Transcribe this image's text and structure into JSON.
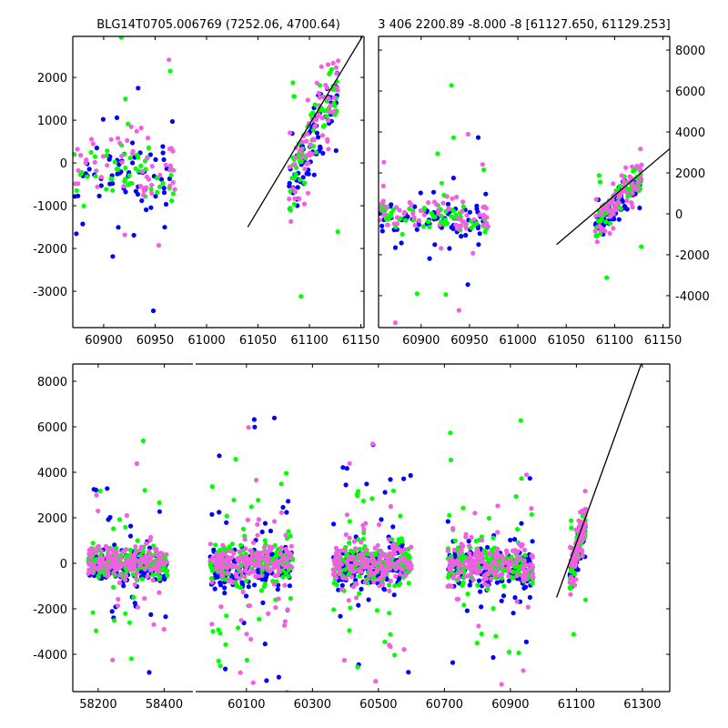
{
  "chart_data": [
    {
      "type": "scatter",
      "title": "BLG14T0705.006769 (7252.06, 4700.64)",
      "xlim": [
        60870,
        61153
      ],
      "ylim": [
        -3850,
        2960
      ],
      "xticks": [
        60900,
        60950,
        61000,
        61050,
        61100,
        61150
      ],
      "yticks": [
        -3000,
        -2000,
        -1000,
        0,
        1000,
        2000
      ],
      "yaxis_side": "left",
      "grid": false
    },
    {
      "type": "scatter",
      "title": "3 406 2200.89 -8.000 -8 [61127.650, 61129.253]",
      "xlim": [
        60856,
        61157
      ],
      "ylim": [
        -5560,
        8670
      ],
      "xticks": [
        60900,
        60950,
        61000,
        61050,
        61100,
        61150
      ],
      "yticks": [
        -4000,
        -2000,
        0,
        2000,
        4000,
        6000,
        8000
      ],
      "yaxis_side": "right",
      "grid": false
    },
    {
      "type": "scatter",
      "title": "",
      "broken_x_axis": true,
      "xlim_segments": [
        [
          58123,
          58487
        ],
        [
          59946,
          61383
        ]
      ],
      "ylim": [
        -5640,
        8760
      ],
      "xticks": [
        58200,
        58400,
        60100,
        60300,
        60500,
        60700,
        60900,
        61100,
        61300
      ],
      "yticks": [
        -4000,
        -2000,
        0,
        2000,
        4000,
        6000,
        8000
      ],
      "yaxis_side": "left",
      "grid": false
    }
  ],
  "series": [
    {
      "name": "blue",
      "color": "#0000ff",
      "bias": -150
    },
    {
      "name": "green",
      "color": "#00ff00",
      "bias": 0
    },
    {
      "name": "violet",
      "color": "#f060e0",
      "bias": 50
    }
  ],
  "seasons": [
    {
      "start": 58170,
      "end": 58410,
      "core_sd": 330,
      "tail_sd": 2300,
      "tail_frac": 0.15,
      "trend": [
        0,
        0
      ]
    },
    {
      "start": 59990,
      "end": 60240,
      "core_sd": 380,
      "tail_sd": 2800,
      "tail_frac": 0.2,
      "trend": [
        0,
        0
      ]
    },
    {
      "start": 60360,
      "end": 60600,
      "core_sd": 400,
      "tail_sd": 2800,
      "tail_frac": 0.2,
      "trend": [
        0,
        0
      ]
    },
    {
      "start": 60710,
      "end": 60970,
      "core_sd": 420,
      "tail_sd": 2500,
      "tail_frac": 0.18,
      "trend": [
        0,
        -200
      ]
    },
    {
      "start": 61080,
      "end": 61128,
      "core_sd": 400,
      "tail_sd": 1500,
      "tail_frac": 0.1,
      "trend": [
        -500,
        1900
      ]
    }
  ],
  "model_line": {
    "x0": 61040,
    "y0": -1500,
    "slope_per_day": 40,
    "color": "#000000"
  }
}
